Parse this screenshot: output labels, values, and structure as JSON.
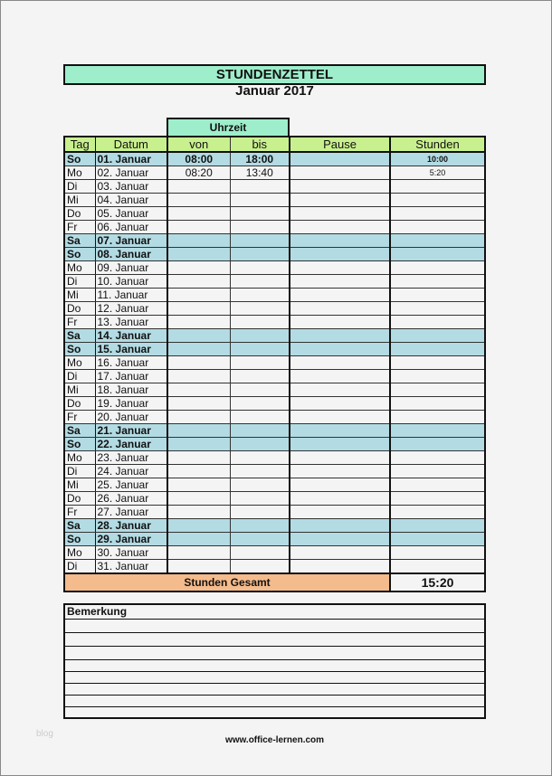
{
  "title": "STUNDENZETTEL",
  "subtitle": "Januar 2017",
  "group_header": "Uhrzeit",
  "headers": [
    "Tag",
    "Datum",
    "von",
    "bis",
    "Pause",
    "Stunden"
  ],
  "rows": [
    [
      "So",
      "01. Januar",
      "08:00",
      "18:00",
      "",
      "10:00",
      true
    ],
    [
      "Mo",
      "02. Januar",
      "08:20",
      "13:40",
      "",
      "5:20",
      false
    ],
    [
      "Di",
      "03. Januar",
      "",
      "",
      "",
      "",
      false
    ],
    [
      "Mi",
      "04. Januar",
      "",
      "",
      "",
      "",
      false
    ],
    [
      "Do",
      "05. Januar",
      "",
      "",
      "",
      "",
      false
    ],
    [
      "Fr",
      "06. Januar",
      "",
      "",
      "",
      "",
      false
    ],
    [
      "Sa",
      "07. Januar",
      "",
      "",
      "",
      "",
      true
    ],
    [
      "So",
      "08. Januar",
      "",
      "",
      "",
      "",
      true
    ],
    [
      "Mo",
      "09. Januar",
      "",
      "",
      "",
      "",
      false
    ],
    [
      "Di",
      "10. Januar",
      "",
      "",
      "",
      "",
      false
    ],
    [
      "Mi",
      "11. Januar",
      "",
      "",
      "",
      "",
      false
    ],
    [
      "Do",
      "12. Januar",
      "",
      "",
      "",
      "",
      false
    ],
    [
      "Fr",
      "13. Januar",
      "",
      "",
      "",
      "",
      false
    ],
    [
      "Sa",
      "14. Januar",
      "",
      "",
      "",
      "",
      true
    ],
    [
      "So",
      "15. Januar",
      "",
      "",
      "",
      "",
      true
    ],
    [
      "Mo",
      "16. Januar",
      "",
      "",
      "",
      "",
      false
    ],
    [
      "Di",
      "17. Januar",
      "",
      "",
      "",
      "",
      false
    ],
    [
      "Mi",
      "18. Januar",
      "",
      "",
      "",
      "",
      false
    ],
    [
      "Do",
      "19. Januar",
      "",
      "",
      "",
      "",
      false
    ],
    [
      "Fr",
      "20. Januar",
      "",
      "",
      "",
      "",
      false
    ],
    [
      "Sa",
      "21. Januar",
      "",
      "",
      "",
      "",
      true
    ],
    [
      "So",
      "22. Januar",
      "",
      "",
      "",
      "",
      true
    ],
    [
      "Mo",
      "23. Januar",
      "",
      "",
      "",
      "",
      false
    ],
    [
      "Di",
      "24. Januar",
      "",
      "",
      "",
      "",
      false
    ],
    [
      "Mi",
      "25. Januar",
      "",
      "",
      "",
      "",
      false
    ],
    [
      "Do",
      "26. Januar",
      "",
      "",
      "",
      "",
      false
    ],
    [
      "Fr",
      "27. Januar",
      "",
      "",
      "",
      "",
      false
    ],
    [
      "Sa",
      "28. Januar",
      "",
      "",
      "",
      "",
      true
    ],
    [
      "So",
      "29. Januar",
      "",
      "",
      "",
      "",
      true
    ],
    [
      "Mo",
      "30. Januar",
      "",
      "",
      "",
      "",
      false
    ],
    [
      "Di",
      "31. Januar",
      "",
      "",
      "",
      "",
      false
    ]
  ],
  "total_label": "Stunden Gesamt",
  "total_value": "15:20",
  "remarks_label": "Bemerkung",
  "footer": "www.office-lernen.com",
  "watermark": "blog",
  "colors": {
    "title_bg": "#9eeecb",
    "header_bg": "#c9f08e",
    "weekend_bg": "#b3dbe3",
    "total_bg": "#f4bb8c"
  }
}
